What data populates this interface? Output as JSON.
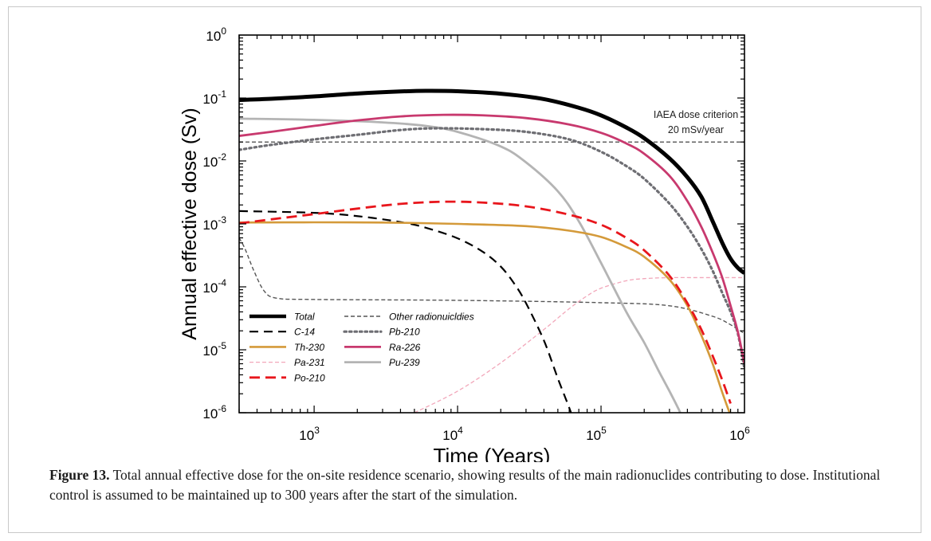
{
  "figure": {
    "label": "Figure 13.",
    "text": "Total annual effective dose for the on-site residence scenario, showing results of the main radionuclides contributing to dose. Institutional control is assumed to be maintained up to 300 years after the start of the simulation."
  },
  "chart_data": {
    "type": "line",
    "title": "",
    "xlabel": "Time (Years)",
    "ylabel": "Annual effective dose (Sv)",
    "xscale": "log",
    "yscale": "log",
    "xlim": [
      300,
      1000000
    ],
    "ylim": [
      1e-06,
      1
    ],
    "xticks": [
      {
        "base": "10",
        "exp": "3",
        "value": 1000
      },
      {
        "base": "10",
        "exp": "4",
        "value": 10000
      },
      {
        "base": "10",
        "exp": "5",
        "value": 100000
      },
      {
        "base": "10",
        "exp": "6",
        "value": 1000000
      }
    ],
    "yticks": [
      {
        "base": "10",
        "exp": "0",
        "value": 1
      },
      {
        "base": "10",
        "exp": "-1",
        "value": 0.1
      },
      {
        "base": "10",
        "exp": "-2",
        "value": 0.01
      },
      {
        "base": "10",
        "exp": "-3",
        "value": 0.001
      },
      {
        "base": "10",
        "exp": "-4",
        "value": 0.0001
      },
      {
        "base": "10",
        "exp": "-5",
        "value": 1e-05
      },
      {
        "base": "10",
        "exp": "-6",
        "value": 1e-06
      }
    ],
    "legend_position": "lower-left",
    "criterion": {
      "value": 0.02,
      "label_line1": "IAEA dose criterion",
      "label_line2": "20 mSv/year",
      "color": "#444444"
    },
    "series": [
      {
        "name": "Total",
        "color": "#000000",
        "width": 5,
        "dash": "",
        "legend_col": 0,
        "legend_row": 0,
        "points": [
          [
            300,
            0.093
          ],
          [
            500,
            0.097
          ],
          [
            1000,
            0.106
          ],
          [
            2000,
            0.118
          ],
          [
            4000,
            0.127
          ],
          [
            6000,
            0.13
          ],
          [
            10000,
            0.128
          ],
          [
            20000,
            0.117
          ],
          [
            40000,
            0.096
          ],
          [
            70000,
            0.07
          ],
          [
            100000,
            0.053
          ],
          [
            150000,
            0.034
          ],
          [
            200000,
            0.023
          ],
          [
            300000,
            0.011
          ],
          [
            400000,
            0.0055
          ],
          [
            500000,
            0.0027
          ],
          [
            600000,
            0.0011
          ],
          [
            700000,
            0.0005
          ],
          [
            800000,
            0.00028
          ],
          [
            900000,
            0.0002
          ],
          [
            1000000,
            0.000165
          ]
        ]
      },
      {
        "name": "C-14",
        "color": "#000000",
        "width": 2.2,
        "dash": "11,7",
        "legend_col": 0,
        "legend_row": 1,
        "points": [
          [
            300,
            0.0016
          ],
          [
            1000,
            0.0015
          ],
          [
            2000,
            0.00133
          ],
          [
            4000,
            0.00107
          ],
          [
            6000,
            0.00087
          ],
          [
            10000,
            0.00059
          ],
          [
            15000,
            0.00036
          ],
          [
            20000,
            0.00021
          ],
          [
            25000,
            0.00011
          ],
          [
            30000,
            5.5e-05
          ],
          [
            40000,
            1.4e-05
          ],
          [
            50000,
            3.5e-06
          ],
          [
            60000,
            1.2e-06
          ],
          [
            65000,
            7e-07
          ]
        ]
      },
      {
        "name": "Th-230",
        "color": "#D49A3A",
        "width": 2.6,
        "dash": "",
        "legend_col": 0,
        "legend_row": 2,
        "points": [
          [
            300,
            0.00105
          ],
          [
            1000,
            0.00106
          ],
          [
            3000,
            0.00105
          ],
          [
            10000,
            0.001
          ],
          [
            30000,
            0.00092
          ],
          [
            60000,
            0.00078
          ],
          [
            100000,
            0.00062
          ],
          [
            150000,
            0.00043
          ],
          [
            200000,
            0.0003
          ],
          [
            300000,
            0.00013
          ],
          [
            400000,
            5e-05
          ],
          [
            500000,
            1.7e-05
          ],
          [
            600000,
            6e-06
          ],
          [
            700000,
            2.1e-06
          ],
          [
            800000,
            9e-07
          ]
        ]
      },
      {
        "name": "Pa-231",
        "color": "#F2A7BA",
        "width": 1.3,
        "dash": "5,3",
        "legend_col": 0,
        "legend_row": 3,
        "points": [
          [
            5000,
            1e-06
          ],
          [
            10000,
            2.2e-06
          ],
          [
            20000,
            6.2e-06
          ],
          [
            40000,
            2.1e-05
          ],
          [
            60000,
            4.5e-05
          ],
          [
            80000,
            7.2e-05
          ],
          [
            100000,
            9.5e-05
          ],
          [
            150000,
            0.000125
          ],
          [
            200000,
            0.000135
          ],
          [
            300000,
            0.00014
          ],
          [
            500000,
            0.00014
          ],
          [
            1000000,
            0.00014
          ]
        ]
      },
      {
        "name": "Po-210",
        "color": "#E8161C",
        "width": 2.8,
        "dash": "13,7",
        "legend_col": 0,
        "legend_row": 4,
        "points": [
          [
            300,
            0.00102
          ],
          [
            500,
            0.00118
          ],
          [
            1000,
            0.00143
          ],
          [
            2000,
            0.00175
          ],
          [
            4000,
            0.00208
          ],
          [
            8000,
            0.00225
          ],
          [
            15000,
            0.00218
          ],
          [
            30000,
            0.0019
          ],
          [
            60000,
            0.0014
          ],
          [
            100000,
            0.00097
          ],
          [
            150000,
            0.0006
          ],
          [
            200000,
            0.00038
          ],
          [
            300000,
            0.00015
          ],
          [
            400000,
            5.5e-05
          ],
          [
            500000,
            2.1e-05
          ],
          [
            600000,
            8e-06
          ],
          [
            700000,
            3.3e-06
          ],
          [
            800000,
            1.4e-06
          ]
        ]
      },
      {
        "name": "Other radionuicldies",
        "color": "#555555",
        "width": 1.4,
        "dash": "5,3",
        "legend_col": 1,
        "legend_row": 0,
        "points": [
          [
            300,
            0.0006
          ],
          [
            330,
            0.0004
          ],
          [
            380,
            0.00018
          ],
          [
            450,
            8.5e-05
          ],
          [
            550,
            6.6e-05
          ],
          [
            1000,
            6.3e-05
          ],
          [
            10000,
            6.1e-05
          ],
          [
            100000,
            5.6e-05
          ],
          [
            300000,
            5e-05
          ],
          [
            600000,
            3.4e-05
          ],
          [
            800000,
            2.5e-05
          ],
          [
            1000000,
            1.8e-05
          ]
        ]
      },
      {
        "name": "Pb-210",
        "color": "#6E6E73",
        "width": 3.2,
        "dash": "2.5,4",
        "legend_col": 1,
        "legend_row": 1,
        "points": [
          [
            300,
            0.015
          ],
          [
            500,
            0.018
          ],
          [
            1000,
            0.022
          ],
          [
            2000,
            0.026
          ],
          [
            4000,
            0.031
          ],
          [
            7000,
            0.033
          ],
          [
            15000,
            0.032
          ],
          [
            30000,
            0.029
          ],
          [
            60000,
            0.022
          ],
          [
            100000,
            0.014
          ],
          [
            150000,
            0.0083
          ],
          [
            200000,
            0.0052
          ],
          [
            300000,
            0.0021
          ],
          [
            400000,
            0.0009
          ],
          [
            500000,
            0.0004
          ],
          [
            600000,
            0.00018
          ],
          [
            700000,
            8e-05
          ],
          [
            800000,
            4e-05
          ],
          [
            900000,
            1.8e-05
          ],
          [
            1000000,
            5e-06
          ]
        ]
      },
      {
        "name": "Ra-226",
        "color": "#C8396E",
        "width": 2.8,
        "dash": "",
        "legend_col": 1,
        "legend_row": 2,
        "points": [
          [
            300,
            0.025
          ],
          [
            500,
            0.029
          ],
          [
            1000,
            0.036
          ],
          [
            2000,
            0.044
          ],
          [
            4000,
            0.051
          ],
          [
            8000,
            0.054
          ],
          [
            15000,
            0.053
          ],
          [
            30000,
            0.048
          ],
          [
            60000,
            0.038
          ],
          [
            100000,
            0.028
          ],
          [
            150000,
            0.019
          ],
          [
            200000,
            0.013
          ],
          [
            300000,
            0.0058
          ],
          [
            400000,
            0.0023
          ],
          [
            500000,
            0.0009
          ],
          [
            600000,
            0.00035
          ],
          [
            700000,
            0.00014
          ],
          [
            800000,
            5e-05
          ],
          [
            900000,
            1.9e-05
          ],
          [
            1000000,
            6e-06
          ]
        ]
      },
      {
        "name": "Pu-239",
        "color": "#B4B4B4",
        "width": 2.8,
        "dash": "",
        "legend_col": 1,
        "legend_row": 3,
        "points": [
          [
            300,
            0.047
          ],
          [
            1000,
            0.045
          ],
          [
            3000,
            0.041
          ],
          [
            6000,
            0.036
          ],
          [
            10000,
            0.029
          ],
          [
            20000,
            0.017
          ],
          [
            30000,
            0.0095
          ],
          [
            50000,
            0.0033
          ],
          [
            70000,
            0.0011
          ],
          [
            100000,
            0.00024
          ],
          [
            150000,
            4e-05
          ],
          [
            200000,
            1.3e-05
          ],
          [
            250000,
            4.8e-06
          ],
          [
            300000,
            2.2e-06
          ],
          [
            350000,
            1.1e-06
          ],
          [
            370000,
            8e-07
          ]
        ]
      }
    ]
  }
}
